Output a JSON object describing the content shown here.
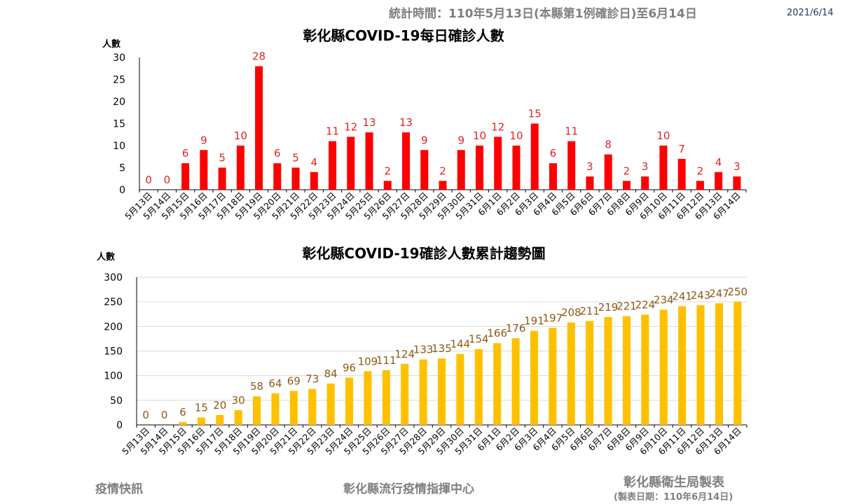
{
  "header": {
    "period": "統計時間：110年5月13日(本縣第1例確診日)至6月14日",
    "date": "2021/6/14"
  },
  "footer": {
    "left": "疫情快訊",
    "center": "彰化縣流行疫情指揮中心",
    "right": "彰化縣衛生局製表",
    "right_sub": "(製表日期：110年6月14日)"
  },
  "colors": {
    "daily_bar": "#ff0000",
    "daily_label": "#e32222",
    "cumulative_bar": "#ffc000",
    "cumulative_label": "#8c5a16"
  },
  "chart_data": [
    {
      "type": "bar",
      "title": "彰化縣COVID-19每日確診人數",
      "ylabel": "人數",
      "xlabel": "",
      "ylim": [
        0,
        30
      ],
      "yticks": [
        0,
        5,
        10,
        15,
        20,
        25,
        30
      ],
      "grid": false,
      "categories": [
        "5月13日",
        "5月14日",
        "5月15日",
        "5月16日",
        "5月17日",
        "5月18日",
        "5月19日",
        "5月20日",
        "5月21日",
        "5月22日",
        "5月23日",
        "5月24日",
        "5月25日",
        "5月26日",
        "5月27日",
        "5月28日",
        "5月29日",
        "5月30日",
        "5月31日",
        "6月1日",
        "6月2日",
        "6月3日",
        "6月4日",
        "6月5日",
        "6月6日",
        "6月7日",
        "6月8日",
        "6月9日",
        "6月10日",
        "6月11日",
        "6月12日",
        "6月13日",
        "6月14日"
      ],
      "values": [
        0,
        0,
        6,
        9,
        5,
        10,
        28,
        6,
        5,
        4,
        11,
        12,
        13,
        2,
        13,
        9,
        2,
        9,
        10,
        12,
        10,
        15,
        6,
        11,
        3,
        8,
        2,
        3,
        10,
        7,
        2,
        4,
        3
      ]
    },
    {
      "type": "bar",
      "title": "彰化縣COVID-19確診人數累計趨勢圖",
      "ylabel": "人數",
      "xlabel": "",
      "ylim": [
        0,
        300
      ],
      "yticks": [
        0,
        50,
        100,
        150,
        200,
        250,
        300
      ],
      "grid": true,
      "categories": [
        "5月13日",
        "5月14日",
        "5月15日",
        "5月16日",
        "5月17日",
        "5月18日",
        "5月19日",
        "5月20日",
        "5月21日",
        "5月22日",
        "5月23日",
        "5月24日",
        "5月25日",
        "5月26日",
        "5月27日",
        "5月28日",
        "5月29日",
        "5月30日",
        "5月31日",
        "6月1日",
        "6月2日",
        "6月3日",
        "6月4日",
        "6月5日",
        "6月6日",
        "6月7日",
        "6月8日",
        "6月9日",
        "6月10日",
        "6月11日",
        "6月12日",
        "6月13日",
        "6月14日"
      ],
      "values": [
        0,
        0,
        6,
        15,
        20,
        30,
        58,
        64,
        69,
        73,
        84,
        96,
        109,
        111,
        124,
        133,
        135,
        144,
        154,
        166,
        176,
        191,
        197,
        208,
        211,
        219,
        221,
        224,
        234,
        241,
        243,
        247,
        250
      ]
    }
  ]
}
